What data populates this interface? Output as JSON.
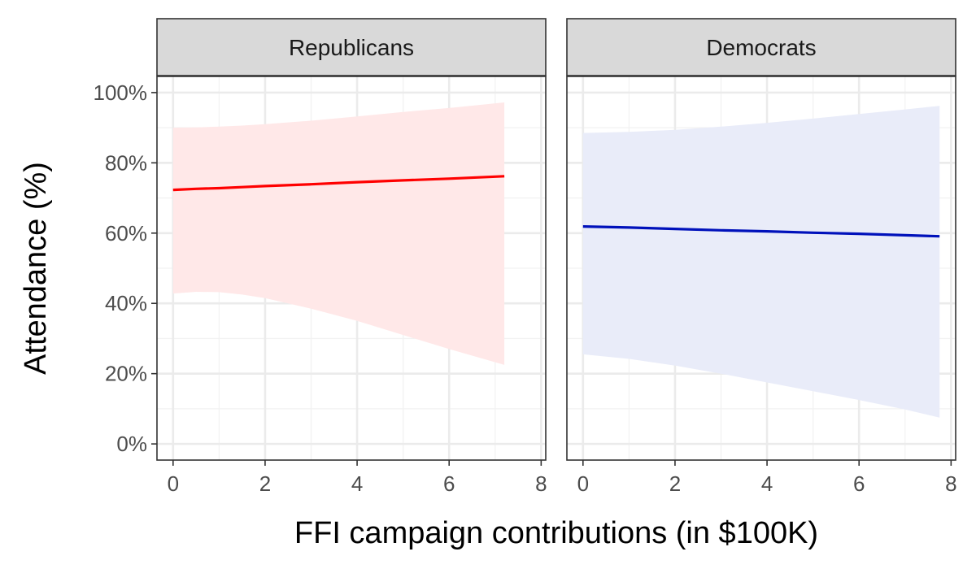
{
  "chart_data": {
    "type": "line",
    "xlabel": "FFI campaign contributions (in $100K)",
    "ylabel": "Attendance (%)",
    "xlim": [
      -0.35,
      8.1
    ],
    "ylim": [
      -4.6,
      104.6
    ],
    "x_ticks": [
      0,
      2,
      4,
      6,
      8
    ],
    "y_ticks": [
      0,
      20,
      40,
      60,
      80,
      100
    ],
    "y_tick_labels": [
      "0%",
      "20%",
      "40%",
      "60%",
      "80%",
      "100%"
    ],
    "grid": true,
    "panels": [
      {
        "name": "Republicans",
        "line_color": "#ff0000",
        "band_color": "#ffe8e8",
        "x": [
          0,
          0.5,
          1,
          1.5,
          2,
          3,
          4,
          5,
          6,
          7.2
        ],
        "y": [
          72.3,
          72.6,
          72.8,
          73.1,
          73.4,
          73.9,
          74.5,
          75.0,
          75.5,
          76.2
        ],
        "lower": [
          42.8,
          43.3,
          43.2,
          42.5,
          41.5,
          38.5,
          35.0,
          31.0,
          27.0,
          22.5
        ],
        "upper": [
          90.0,
          90.1,
          90.3,
          90.6,
          91.0,
          92.0,
          93.2,
          94.5,
          95.6,
          97.2
        ]
      },
      {
        "name": "Democrats",
        "line_color": "#0011bb",
        "band_color": "#e9ecf9",
        "x": [
          0,
          1,
          2,
          3,
          4,
          5,
          6,
          7,
          7.75
        ],
        "y": [
          61.9,
          61.6,
          61.2,
          60.8,
          60.5,
          60.1,
          59.8,
          59.4,
          59.1
        ],
        "lower": [
          25.5,
          24.2,
          22.3,
          20.0,
          17.5,
          15.0,
          12.5,
          9.8,
          7.5
        ],
        "upper": [
          88.5,
          88.8,
          89.4,
          90.3,
          91.4,
          92.6,
          93.9,
          95.2,
          96.2
        ]
      }
    ]
  }
}
